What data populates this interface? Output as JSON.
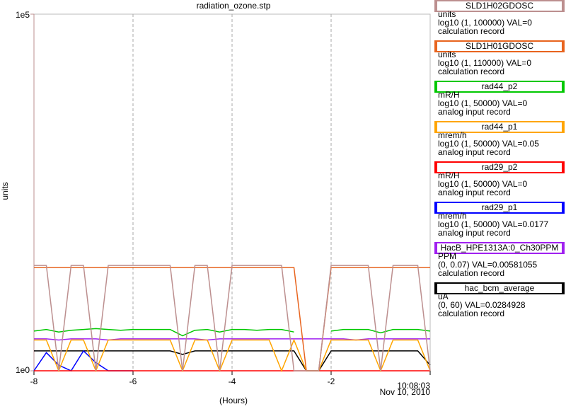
{
  "chart_data": {
    "type": "line",
    "title": "radiation_ozone.stp",
    "x_label": "(Hours)",
    "y_label": "units",
    "date": "Nov 10, 2010",
    "log_scale": true,
    "grid": "x",
    "axis_color": "#bc8f8f",
    "xlim": [
      -8,
      0
    ],
    "xticks": [
      -8,
      -6,
      -4,
      -2,
      {
        "value": 0,
        "label": "10:08:03"
      }
    ],
    "ylim": [
      1,
      100000
    ],
    "yticks": [
      {
        "value": 1,
        "label": "1e0"
      },
      {
        "value": 100000,
        "label": "1e5"
      }
    ],
    "x": [
      -8,
      -7.75,
      -7.5,
      -7.25,
      -7,
      -6.75,
      -6.5,
      -6.25,
      -6,
      -5.75,
      -5.5,
      -5.25,
      -5,
      -4.75,
      -4.5,
      -4.25,
      -4,
      -3.75,
      -3.5,
      -3.25,
      -3,
      -2.75,
      -2.5,
      -2.25,
      -2,
      -1.75,
      -1.5,
      -1.25,
      -1,
      -0.75,
      -0.5,
      -0.25,
      0
    ],
    "series": [
      {
        "name": "SLD1H02GDOSC",
        "color": "#bc8f8f",
        "units": "units",
        "scale_info": "log10 (1, 100000) VAL=0",
        "record_type": "calculation record",
        "values": [
          30,
          30,
          1,
          30,
          30,
          1,
          30,
          30,
          30,
          30,
          30,
          30,
          1,
          30,
          30,
          1,
          30,
          30,
          30,
          30,
          30,
          1,
          1,
          1,
          30,
          30,
          30,
          30,
          1,
          30,
          30,
          30,
          1
        ]
      },
      {
        "name": "SLD1H01GDOSC",
        "color": "#e8641e",
        "units": "units",
        "scale_info": "log10 (1, 110000) VAL=0",
        "record_type": "calculation record",
        "values": [
          28,
          28,
          28,
          28,
          28,
          28,
          28,
          28,
          28,
          28,
          28,
          28,
          28,
          28,
          28,
          28,
          28,
          28,
          28,
          28,
          28,
          28,
          1,
          1,
          28,
          28,
          28,
          28,
          28,
          28,
          28,
          28,
          28
        ]
      },
      {
        "name": "rad44_p2",
        "color": "#00c800",
        "units": "mR/H",
        "scale_info": "log10 (1, 50000) VAL=0",
        "record_type": "analog input record",
        "values": [
          3.6,
          3.8,
          3.5,
          3.7,
          3.8,
          3.9,
          3.8,
          3.7,
          3.8,
          3.8,
          3.8,
          3.8,
          3.1,
          3.7,
          3.8,
          3.5,
          3.8,
          3.8,
          3.7,
          3.8,
          3.8,
          3.5,
          null,
          null,
          3.6,
          3.8,
          3.8,
          3.8,
          3.4,
          3.8,
          3.8,
          3.8,
          3.6
        ]
      },
      {
        "name": "rad44_p1",
        "color": "#ffa500",
        "units": "mrem/h",
        "scale_info": "log10 (1, 50000) VAL=0.05",
        "record_type": "analog input record",
        "values": [
          2.7,
          2.7,
          1,
          2.7,
          2.7,
          1,
          2.7,
          2.7,
          2.7,
          2.7,
          2.7,
          2.7,
          1,
          2.7,
          2.7,
          1,
          2.7,
          2.7,
          2.7,
          2.7,
          1,
          2.7,
          1,
          1,
          2.7,
          2.7,
          2.7,
          2.7,
          1,
          2.7,
          2.7,
          2.7,
          1
        ]
      },
      {
        "name": "rad29_p2",
        "color": "#ff0000",
        "units": "mR/H",
        "scale_info": "log10 (1, 50000) VAL=0",
        "record_type": "analog input record",
        "values": [
          1,
          1,
          1,
          1,
          1,
          1,
          1,
          1,
          1,
          1,
          1,
          1,
          1,
          1,
          1,
          1,
          1,
          1,
          1,
          1,
          1,
          1,
          1,
          1,
          1,
          1,
          1,
          1,
          1,
          1,
          1,
          1,
          1
        ]
      },
      {
        "name": "rad29_p1",
        "color": "#0000ff",
        "units": "mrem/h",
        "scale_info": "log10 (1, 50000) VAL=0.0177",
        "record_type": "analog input record",
        "values": [
          1,
          1.8,
          1.2,
          1,
          1.9,
          1.3,
          1,
          1,
          1,
          null,
          null,
          null,
          null,
          null,
          null,
          null,
          null,
          null,
          null,
          null,
          null,
          null,
          null,
          null,
          null,
          null,
          null,
          null,
          null,
          null,
          null,
          null,
          null
        ]
      },
      {
        "name": "HacB_HPE1313A:0_Ch30PPM",
        "color": "#a020f0",
        "units": "PPM",
        "scale_info": "(0, 0.07) VAL=0.00581055",
        "record_type": "calculation record",
        "values": [
          2.8,
          2.8,
          2.7,
          2.8,
          2.8,
          2.8,
          2.7,
          2.8,
          2.8,
          2.8,
          2.8,
          2.8,
          2.8,
          2.8,
          2.7,
          2.8,
          2.8,
          2.8,
          2.8,
          2.8,
          2.8,
          2.8,
          2.8,
          2.8,
          2.8,
          2.8,
          2.7,
          2.8,
          2.8,
          2.8,
          2.8,
          2.8,
          2.8
        ]
      },
      {
        "name": "hac_bcm_average",
        "color": "#000000",
        "units": "uA",
        "scale_info": "(0, 60) VAL=0.0284928",
        "record_type": "calculation record",
        "values": [
          1.9,
          1.9,
          1.9,
          1.9,
          1.9,
          1.9,
          1.9,
          1.9,
          1.9,
          1.9,
          1.9,
          1.9,
          1.7,
          1.9,
          1.9,
          1.9,
          1.9,
          1.9,
          1.9,
          1.9,
          1.9,
          1.9,
          1,
          1,
          1.9,
          1.9,
          1.9,
          1.9,
          1.9,
          1.9,
          1.9,
          1.9,
          1.2
        ]
      }
    ]
  }
}
